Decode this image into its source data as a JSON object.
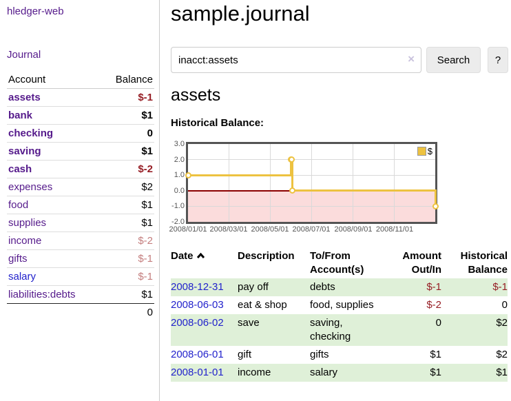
{
  "app": {
    "title": "hledger-web"
  },
  "sidebar": {
    "nav": {
      "journal_label": "Journal"
    },
    "accounts_table": {
      "headers": {
        "account": "Account",
        "balance": "Balance"
      },
      "rows": [
        {
          "name": "assets",
          "balance": "$-1"
        },
        {
          "name": "bank",
          "balance": "$1"
        },
        {
          "name": "checking",
          "balance": "0"
        },
        {
          "name": "saving",
          "balance": "$1"
        },
        {
          "name": "cash",
          "balance": "$-2"
        },
        {
          "name": "expenses",
          "balance": "$2"
        },
        {
          "name": "food",
          "balance": "$1"
        },
        {
          "name": "supplies",
          "balance": "$1"
        },
        {
          "name": "income",
          "balance": "$-2"
        },
        {
          "name": "gifts",
          "balance": "$-1"
        },
        {
          "name": "salary",
          "balance": "$-1"
        },
        {
          "name": "liabilities:debts",
          "balance": "$1"
        }
      ],
      "total": "0"
    }
  },
  "header": {
    "title": "sample.journal"
  },
  "search": {
    "value": "inacct:assets",
    "button_label": "Search",
    "help_label": "?"
  },
  "icons": {
    "clear_search": "×",
    "sort_ascending": "chevron-up"
  },
  "account_page": {
    "title": "assets",
    "chart_label": "Historical Balance:"
  },
  "chart_data": {
    "type": "line",
    "step": true,
    "title": "Historical Balance:",
    "series": [
      {
        "name": "$",
        "points": [
          [
            "2008-01-01",
            1.0
          ],
          [
            "2008-06-01",
            2.0
          ],
          [
            "2008-06-02",
            2.0
          ],
          [
            "2008-06-03",
            0.0
          ],
          [
            "2008-12-31",
            -1.0
          ]
        ]
      }
    ],
    "x_start": "2008-01-01",
    "x_end": "2008-12-31",
    "xticks": [
      "2008/01/01",
      "2008/03/01",
      "2008/05/01",
      "2008/07/01",
      "2008/09/01",
      "2008/11/01"
    ],
    "yticks": [
      3.0,
      2.0,
      1.0,
      0.0,
      -1.0,
      -2.0
    ],
    "ylim": [
      -2.0,
      3.0
    ],
    "grid": true,
    "legend_position": "top-right",
    "colors": {
      "line": "#edc240",
      "negative_region": "#fbdcdc",
      "zero_line": "#8b0000"
    }
  },
  "register": {
    "headers": {
      "date": "Date",
      "description": "Description",
      "accounts": "To/From Account(s)",
      "amount": "Amount Out/In",
      "balance": "Historical Balance"
    },
    "rows": [
      {
        "date": "2008-12-31",
        "description": "pay off",
        "accounts": "debts",
        "amount": "$-1",
        "balance": "$-1"
      },
      {
        "date": "2008-06-03",
        "description": "eat & shop",
        "accounts": "food, supplies",
        "amount": "$-2",
        "balance": "0"
      },
      {
        "date": "2008-06-02",
        "description": "save",
        "accounts": "saving, checking",
        "amount": "0",
        "balance": "$2"
      },
      {
        "date": "2008-06-01",
        "description": "gift",
        "accounts": "gifts",
        "amount": "$1",
        "balance": "$2"
      },
      {
        "date": "2008-01-01",
        "description": "income",
        "accounts": "salary",
        "amount": "$1",
        "balance": "$1"
      }
    ]
  },
  "colors": {
    "link_purple": "#551a8b",
    "link_blue": "#2222cc",
    "negative_strong": "#961e25",
    "negative_faded": "#c47e7e",
    "row_stripe_green": "#dff0d8"
  }
}
